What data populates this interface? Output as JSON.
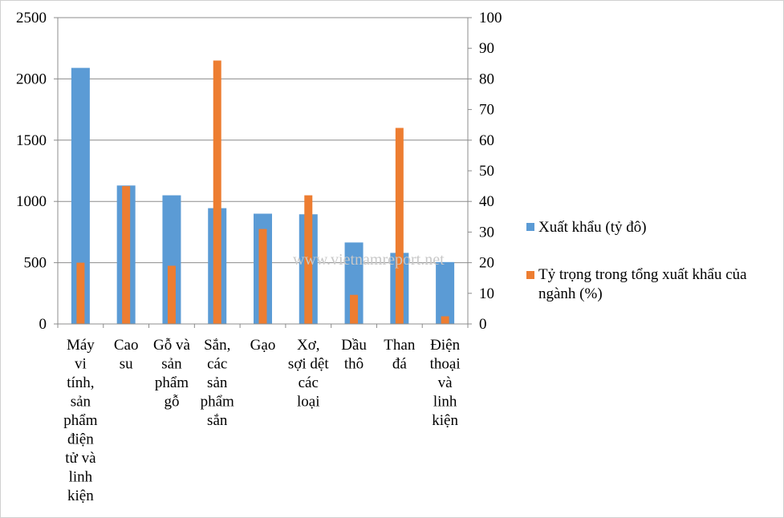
{
  "chart_data": {
    "type": "bar",
    "categories": [
      "Máy vi tính, sản phẩm điện tử và linh kiện",
      "Cao su",
      "Gỗ và sản phẩm gỗ",
      "Sắn, các sản phẩm sắn",
      "Gạo",
      "Xơ, sợi dệt các loại",
      "Dầu thô",
      "Than đá",
      "Điện thoại và linh kiện"
    ],
    "category_lines": [
      [
        "Máy",
        "vi",
        "tính,",
        "sản",
        "phẩm",
        "điện",
        "tử và",
        "linh",
        "kiện"
      ],
      [
        "Cao",
        "su"
      ],
      [
        "Gỗ và",
        "sản",
        "phẩm",
        "gỗ"
      ],
      [
        "Sắn,",
        "các",
        "sản",
        "phẩm",
        "sắn"
      ],
      [
        "Gạo"
      ],
      [
        "Xơ,",
        "sợi dệt",
        "các",
        "loại"
      ],
      [
        "Dầu",
        "thô"
      ],
      [
        "Than",
        "đá"
      ],
      [
        "Điện",
        "thoại",
        "và",
        "linh",
        "kiện"
      ]
    ],
    "series": [
      {
        "name": "Xuất khẩu (tỷ đô)",
        "axis": "left",
        "color": "#5B9BD5",
        "values": [
          2090,
          1130,
          1050,
          945,
          900,
          895,
          665,
          580,
          505
        ]
      },
      {
        "name": "Tỷ trọng trong tổng xuất khẩu của ngành (%)",
        "axis": "right",
        "color": "#ED7D31",
        "values": [
          20,
          45,
          19,
          86,
          31,
          42,
          9.5,
          64,
          2.5
        ]
      }
    ],
    "y_left": {
      "min": 0,
      "max": 2500,
      "ticks": [
        0,
        500,
        1000,
        1500,
        2000,
        2500
      ]
    },
    "y_right": {
      "min": 0,
      "max": 100,
      "ticks": [
        0,
        10,
        20,
        30,
        40,
        50,
        60,
        70,
        80,
        90,
        100
      ]
    },
    "grid": true,
    "legend_position": "right",
    "watermark": "www.vietnamreport.net"
  }
}
